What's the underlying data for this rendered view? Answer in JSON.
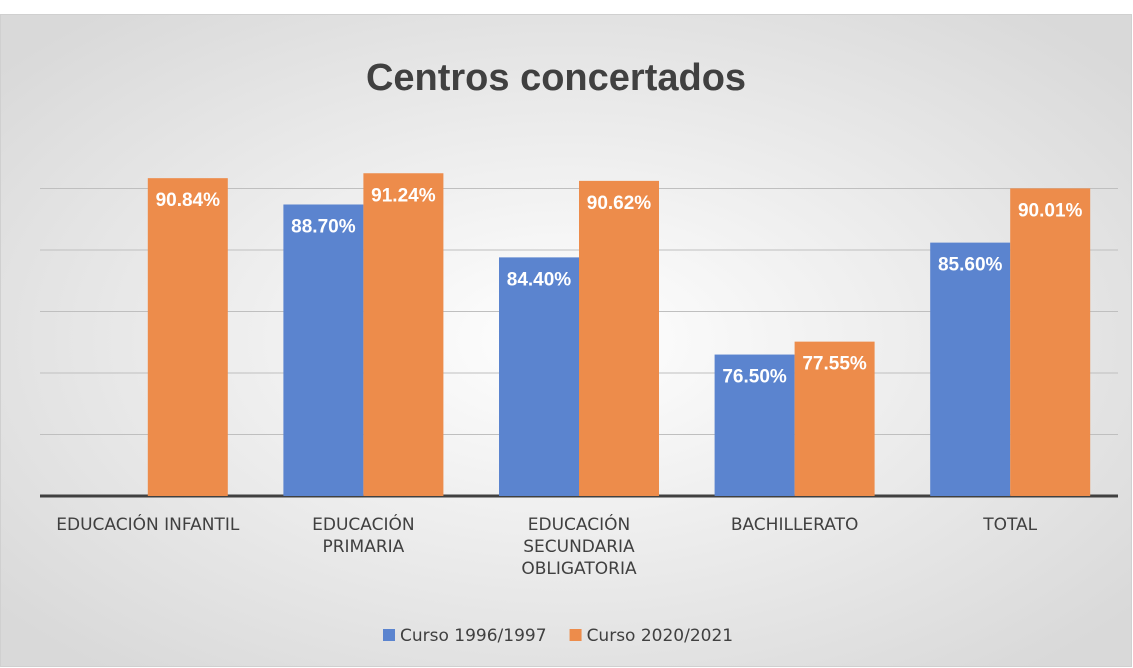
{
  "chart_data": {
    "type": "bar",
    "title": "Centros concertados",
    "categories": [
      "EDUCACIÓN INFANTIL",
      "EDUCACIÓN PRIMARIA",
      "EDUCACIÓN SECUNDARIA OBLIGATORIA",
      "BACHILLERATO",
      "TOTAL"
    ],
    "series": [
      {
        "name": "Curso 1996/1997",
        "color": "#5b84cf",
        "values": [
          null,
          88.7,
          84.4,
          76.5,
          85.6
        ],
        "value_labels": [
          null,
          "88.70%",
          "84.40%",
          "76.50%",
          "85.60%"
        ]
      },
      {
        "name": "Curso 2020/2021",
        "color": "#ed8c4b",
        "values": [
          90.84,
          91.24,
          90.62,
          77.55,
          90.01
        ],
        "value_labels": [
          "90.84%",
          "91.24%",
          "90.62%",
          "77.55%",
          "90.01%"
        ]
      }
    ],
    "ylim": [
      65,
      95
    ],
    "yticks": [
      65,
      70,
      75,
      80,
      85,
      90
    ],
    "grid": true,
    "legend": "bottom"
  }
}
